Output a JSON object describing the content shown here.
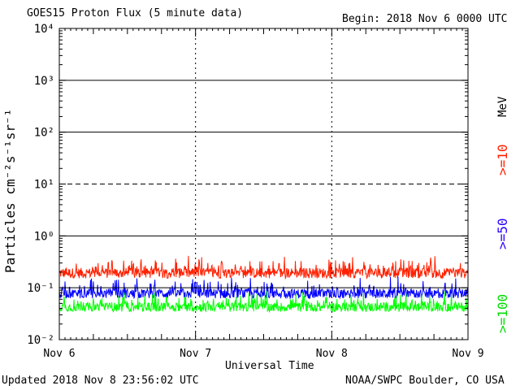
{
  "header": {
    "title": "GOES15 Proton Flux (5 minute data)",
    "begin": "Begin: 2018 Nov 6 0000 UTC"
  },
  "footer": {
    "updated": "Updated 2018 Nov  8 23:56:02 UTC",
    "source": "NOAA/SWPC Boulder, CO USA"
  },
  "chart_data": {
    "type": "line",
    "xlabel": "Universal Time",
    "ylabel": "Particles cm⁻²s⁻¹sr⁻¹",
    "yscale": "log",
    "ylim": [
      0.01,
      10000
    ],
    "y_tick_labels": [
      "10⁻²",
      "10⁻¹",
      "10⁰",
      "10¹",
      "10²",
      "10³",
      "10⁴"
    ],
    "xlim": [
      "2018-11-06",
      "2018-11-09"
    ],
    "x_tick_labels": [
      "Nov 6",
      "Nov 7",
      "Nov 8",
      "Nov 9"
    ],
    "threshold_lines": [
      {
        "value": 1000,
        "style": "solid"
      },
      {
        "value": 100,
        "style": "solid"
      },
      {
        "value": 10,
        "style": "dashed"
      },
      {
        "value": 1,
        "style": "solid"
      },
      {
        "value": 0.1,
        "style": "solid"
      }
    ],
    "energy_unit": "MeV",
    "series": [
      {
        "name": ">=10",
        "color": "#ff2000",
        "typical_range": [
          0.12,
          0.45
        ]
      },
      {
        "name": ">=50",
        "color": "#0000ff",
        "typical_range": [
          0.05,
          0.17
        ]
      },
      {
        "name": ">=100",
        "color": "#00ff00",
        "typical_range": [
          0.028,
          0.09
        ]
      }
    ]
  }
}
